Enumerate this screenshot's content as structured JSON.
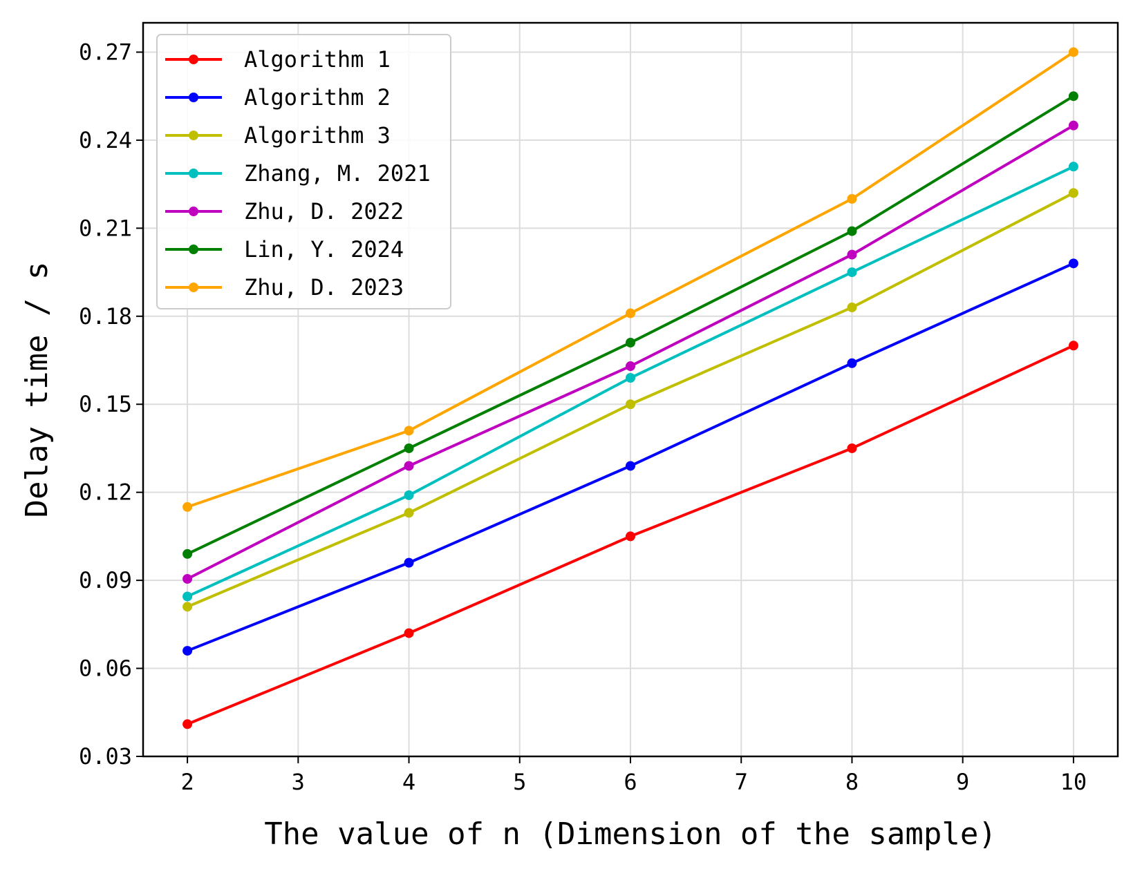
{
  "chart_data": {
    "type": "line",
    "title": "",
    "xlabel": "The value of n (Dimension of the sample)",
    "ylabel": "Delay time / s",
    "x": [
      2,
      4,
      6,
      8,
      10
    ],
    "xlim": [
      1.6,
      10.4
    ],
    "ylim": [
      0.03,
      0.28
    ],
    "xticks": [
      2,
      3,
      4,
      5,
      6,
      7,
      8,
      9,
      10
    ],
    "yticks": [
      0.03,
      0.06,
      0.09,
      0.12,
      0.15,
      0.18,
      0.21,
      0.24,
      0.27
    ],
    "ytick_labels": [
      "0.03",
      "0.06",
      "0.09",
      "0.12",
      "0.15",
      "0.18",
      "0.21",
      "0.24",
      "0.27"
    ],
    "grid": true,
    "legend_position": "top-left",
    "series": [
      {
        "name": "Algorithm 1",
        "color": "#ff0000",
        "values": [
          0.041,
          0.072,
          0.105,
          0.135,
          0.17
        ]
      },
      {
        "name": "Algorithm 2",
        "color": "#0000ff",
        "values": [
          0.066,
          0.096,
          0.129,
          0.164,
          0.198
        ]
      },
      {
        "name": "Algorithm 3",
        "color": "#bfbf00",
        "values": [
          0.081,
          0.113,
          0.15,
          0.183,
          0.222
        ]
      },
      {
        "name": "Zhang, M. 2021",
        "color": "#00bfbf",
        "values": [
          0.0845,
          0.119,
          0.159,
          0.195,
          0.231
        ]
      },
      {
        "name": "Zhu, D. 2022",
        "color": "#bf00bf",
        "values": [
          0.0905,
          0.129,
          0.163,
          0.201,
          0.245
        ]
      },
      {
        "name": "Lin, Y. 2024",
        "color": "#008000",
        "values": [
          0.099,
          0.135,
          0.171,
          0.209,
          0.255
        ]
      },
      {
        "name": "Zhu, D. 2023",
        "color": "#ffa500",
        "values": [
          0.115,
          0.141,
          0.181,
          0.22,
          0.27
        ]
      }
    ]
  }
}
